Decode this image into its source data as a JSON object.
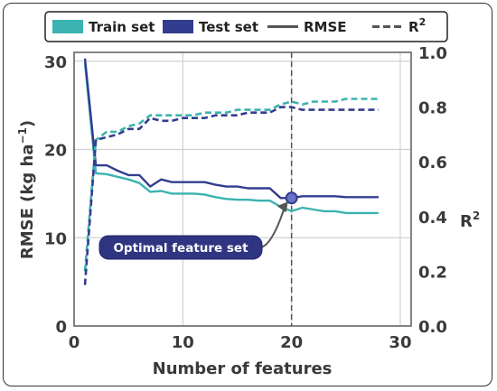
{
  "chart_data": {
    "type": "line",
    "xlabel": "Number of features",
    "ylabel": "RMSE (kg ha",
    "ylabel_sup": "−1",
    "ylabel_close": ")",
    "y2label": "R",
    "y2label_sup": "2",
    "xlim": [
      0,
      31
    ],
    "ylim": [
      0,
      31
    ],
    "y2lim": [
      0,
      1.0
    ],
    "xticks": [
      "0",
      "10",
      "20",
      "30"
    ],
    "yticks": [
      "0",
      "10",
      "20",
      "30"
    ],
    "y2ticks": [
      "0.0",
      "0.2",
      "0.4",
      "0.6",
      "0.8",
      "1.0"
    ],
    "grid": true,
    "legend": {
      "placement": "top",
      "entries": [
        {
          "label": "Train set",
          "kind": "patch",
          "color": "#3bb3b0"
        },
        {
          "label": "Test set",
          "kind": "patch",
          "color": "#333d8f"
        },
        {
          "label": "RMSE",
          "kind": "solid",
          "color": "#555555"
        },
        {
          "label": "R",
          "label_sup": "2",
          "kind": "dashed",
          "color": "#555555"
        }
      ]
    },
    "x": [
      1,
      2,
      3,
      4,
      5,
      6,
      7,
      8,
      9,
      10,
      11,
      12,
      13,
      14,
      15,
      16,
      17,
      18,
      19,
      20,
      21,
      22,
      23,
      24,
      25,
      26,
      27,
      28
    ],
    "series": [
      {
        "name": "Train set",
        "metric": "RMSE",
        "axis": "left",
        "style": "solid",
        "color": "#3bb3b0",
        "values": [
          29.8,
          17.3,
          17.2,
          16.9,
          16.6,
          16.2,
          15.2,
          15.3,
          15.0,
          15.0,
          15.0,
          14.9,
          14.6,
          14.4,
          14.3,
          14.3,
          14.2,
          14.2,
          13.5,
          13.0,
          13.4,
          13.2,
          13.0,
          13.0,
          12.8,
          12.8,
          12.8,
          12.8
        ]
      },
      {
        "name": "Test set",
        "metric": "RMSE",
        "axis": "left",
        "style": "solid",
        "color": "#333d8f",
        "values": [
          30.3,
          18.2,
          18.2,
          17.6,
          17.1,
          17.1,
          15.8,
          16.6,
          16.3,
          16.3,
          16.3,
          16.3,
          16.0,
          15.8,
          15.8,
          15.6,
          15.6,
          15.6,
          14.5,
          14.5,
          14.7,
          14.7,
          14.7,
          14.7,
          14.6,
          14.6,
          14.6,
          14.6
        ]
      },
      {
        "name": "Train set",
        "metric": "R2",
        "axis": "right",
        "style": "dashed",
        "color": "#3bb3b0",
        "values": [
          0.2,
          0.68,
          0.71,
          0.71,
          0.73,
          0.74,
          0.77,
          0.77,
          0.77,
          0.77,
          0.77,
          0.78,
          0.78,
          0.78,
          0.79,
          0.79,
          0.79,
          0.79,
          0.81,
          0.82,
          0.81,
          0.82,
          0.82,
          0.82,
          0.83,
          0.83,
          0.83,
          0.83
        ]
      },
      {
        "name": "Test set",
        "metric": "R2",
        "axis": "right",
        "style": "dashed",
        "color": "#333d8f",
        "values": [
          0.15,
          0.68,
          0.69,
          0.7,
          0.72,
          0.72,
          0.76,
          0.75,
          0.75,
          0.76,
          0.76,
          0.76,
          0.77,
          0.77,
          0.77,
          0.78,
          0.78,
          0.78,
          0.8,
          0.8,
          0.79,
          0.79,
          0.79,
          0.79,
          0.79,
          0.79,
          0.79,
          0.79
        ]
      }
    ],
    "optimal": {
      "x": 20,
      "y": 14.5,
      "label": "Optimal feature set",
      "vline_color": "#555555",
      "marker_color": "#333d8f"
    }
  }
}
